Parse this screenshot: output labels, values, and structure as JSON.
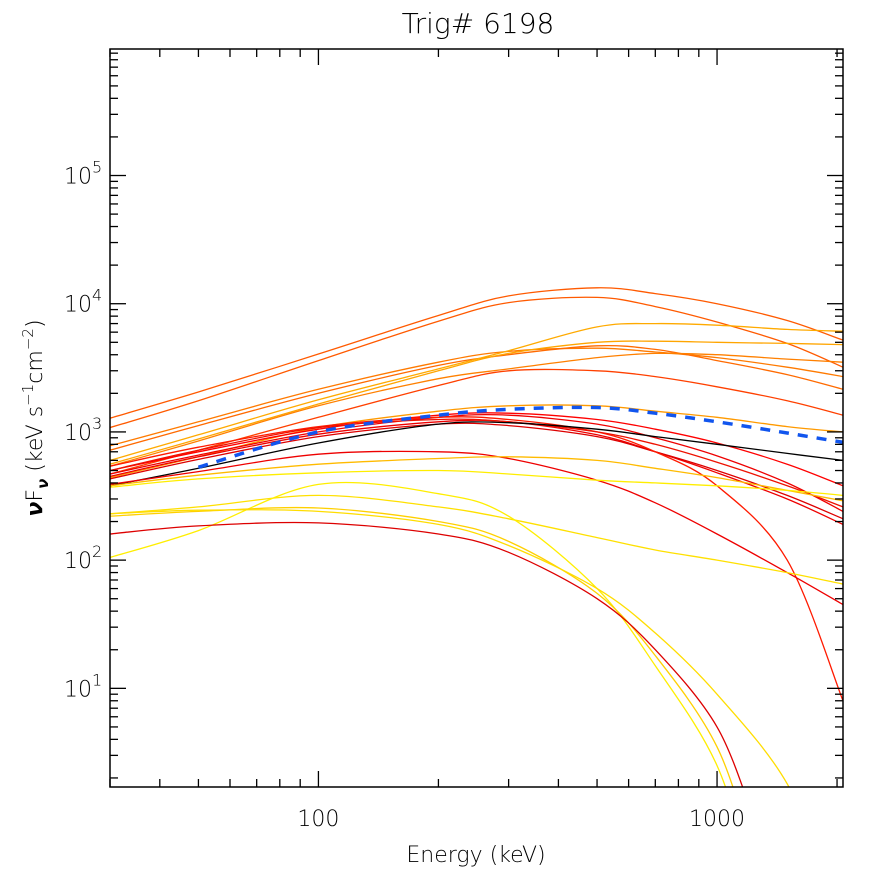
{
  "chart_data": {
    "type": "line",
    "title": "Trig# 6198",
    "xlabel": "Energy (keV)",
    "ylabel": "νFν (keV s⁻¹cm⁻²)",
    "ylabel_parts": {
      "nu": "ν",
      "F": "F",
      "sub": "ν",
      "rest1": " (keV s",
      "sup1": "−1",
      "rest2": "cm",
      "sup2": "−2",
      "rest3": ")"
    },
    "xscale": "log",
    "yscale": "log",
    "xlim": [
      30,
      2070
    ],
    "ylim": [
      1.7,
      970000
    ],
    "x_ticks": [
      {
        "value": 100,
        "label": "100"
      },
      {
        "value": 1000,
        "label": "1000"
      }
    ],
    "y_ticks": [
      {
        "value": 10,
        "base": "10",
        "exp": "1"
      },
      {
        "value": 100,
        "base": "10",
        "exp": "2"
      },
      {
        "value": 1000,
        "base": "10",
        "exp": "3"
      },
      {
        "value": 10000,
        "base": "10",
        "exp": "4"
      },
      {
        "value": 100000,
        "base": "10",
        "exp": "5"
      }
    ],
    "grid": false,
    "legend": "none",
    "x": [
      30,
      50,
      100,
      200,
      300,
      500,
      700,
      1000,
      1500,
      2070
    ],
    "series": [
      {
        "name": "orange-red-1",
        "color": "#ff5a00",
        "style": "solid",
        "values": [
          1280,
          2050,
          4050,
          8100,
          11500,
          13300,
          12000,
          10000,
          7400,
          5200
        ]
      },
      {
        "name": "orange-red-2",
        "color": "#ff5a00",
        "style": "solid",
        "values": [
          1080,
          1750,
          3600,
          7300,
          10200,
          11200,
          9500,
          7200,
          4900,
          3200
        ]
      },
      {
        "name": "orange-3",
        "color": "#ff7a00",
        "style": "solid",
        "values": [
          780,
          1200,
          2150,
          3500,
          4250,
          4500,
          4200,
          3800,
          3200,
          2700
        ]
      },
      {
        "name": "orange-4",
        "color": "#ff6a00",
        "style": "solid",
        "values": [
          720,
          1120,
          2000,
          3300,
          4000,
          4700,
          4400,
          3600,
          2800,
          2150
        ]
      },
      {
        "name": "amber-5",
        "color": "#ffaa00",
        "style": "solid",
        "values": [
          600,
          950,
          1780,
          3100,
          4300,
          6600,
          7000,
          6800,
          6300,
          6100
        ]
      },
      {
        "name": "amber-6",
        "color": "#ffa500",
        "style": "solid",
        "values": [
          560,
          880,
          1650,
          3000,
          4100,
          5000,
          5100,
          5000,
          4900,
          4800
        ]
      },
      {
        "name": "orange-7",
        "color": "#ff8000",
        "style": "solid",
        "values": [
          540,
          850,
          1600,
          2600,
          3100,
          3800,
          4100,
          4000,
          3700,
          3500
        ]
      },
      {
        "name": "red-orange-8",
        "color": "#ff4000",
        "style": "solid",
        "values": [
          470,
          720,
          1300,
          2300,
          3000,
          3000,
          2700,
          2250,
          1750,
          1350
        ]
      },
      {
        "name": "amber-9",
        "color": "#ff9a00",
        "style": "solid",
        "values": [
          440,
          640,
          1080,
          1450,
          1600,
          1600,
          1450,
          1300,
          1100,
          1000
        ]
      },
      {
        "name": "red-10",
        "color": "#ff0000",
        "style": "solid",
        "values": [
          500,
          700,
          1050,
          1350,
          1400,
          1250,
          1050,
          820,
          560,
          380
        ]
      },
      {
        "name": "red-11",
        "color": "#ee0000",
        "style": "solid",
        "values": [
          470,
          660,
          1000,
          1300,
          1350,
          1150,
          900,
          650,
          400,
          240
        ]
      },
      {
        "name": "red-12",
        "color": "#ee0000",
        "style": "solid",
        "values": [
          450,
          640,
          960,
          1200,
          1200,
          950,
          700,
          480,
          300,
          190
        ]
      },
      {
        "name": "red-13",
        "color": "#dd0000",
        "style": "solid",
        "values": [
          430,
          610,
          920,
          1150,
          1120,
          920,
          700,
          500,
          320,
          210
        ]
      },
      {
        "name": "red-14",
        "color": "#ff1a00",
        "style": "solid",
        "values": [
          540,
          760,
          1100,
          1300,
          1250,
          1000,
          700,
          380,
          100,
          8
        ]
      },
      {
        "name": "red-15",
        "color": "#ee1100",
        "style": "solid",
        "values": [
          500,
          720,
          1080,
          1250,
          1200,
          1000,
          800,
          580,
          380,
          260
        ]
      },
      {
        "name": "black-16",
        "color": "#000000",
        "style": "solid",
        "values": [
          380,
          520,
          820,
          1150,
          1180,
          1050,
          920,
          800,
          680,
          600
        ]
      },
      {
        "name": "blue-dashed-17",
        "color": "#1155ee",
        "style": "dashed",
        "values": [
          null,
          530,
          1000,
          1350,
          1500,
          1550,
          1400,
          1200,
          980,
          830
        ]
      },
      {
        "name": "red-18",
        "color": "#ee0000",
        "style": "solid",
        "values": [
          390,
          490,
          670,
          700,
          620,
          420,
          280,
          160,
          80,
          45
        ]
      },
      {
        "name": "amber-19",
        "color": "#ffbb00",
        "style": "solid",
        "values": [
          380,
          460,
          560,
          620,
          640,
          600,
          520,
          440,
          350,
          290
        ]
      },
      {
        "name": "yellow-20",
        "color": "#ffee00",
        "style": "solid",
        "values": [
          370,
          430,
          480,
          500,
          470,
          420,
          400,
          380,
          350,
          320
        ]
      },
      {
        "name": "yellow-21",
        "color": "#ffe000",
        "style": "solid",
        "values": [
          230,
          260,
          320,
          260,
          210,
          150,
          120,
          100,
          80,
          65
        ]
      },
      {
        "name": "yellow-22",
        "color": "#ffee00",
        "style": "solid",
        "values": [
          105,
          170,
          390,
          330,
          220,
          60,
          15,
          2.5,
          null,
          null
        ]
      },
      {
        "name": "yellow-23",
        "color": "#ffd000",
        "style": "solid",
        "values": [
          220,
          240,
          255,
          200,
          140,
          55,
          18,
          3.5,
          null,
          null
        ]
      },
      {
        "name": "yellow-24",
        "color": "#ffdd00",
        "style": "solid",
        "values": [
          230,
          245,
          240,
          190,
          130,
          60,
          27,
          9,
          1.8,
          null
        ]
      },
      {
        "name": "red-25",
        "color": "#dd0000",
        "style": "solid",
        "values": [
          160,
          185,
          195,
          160,
          115,
          50,
          20,
          5,
          null,
          null
        ]
      }
    ]
  }
}
